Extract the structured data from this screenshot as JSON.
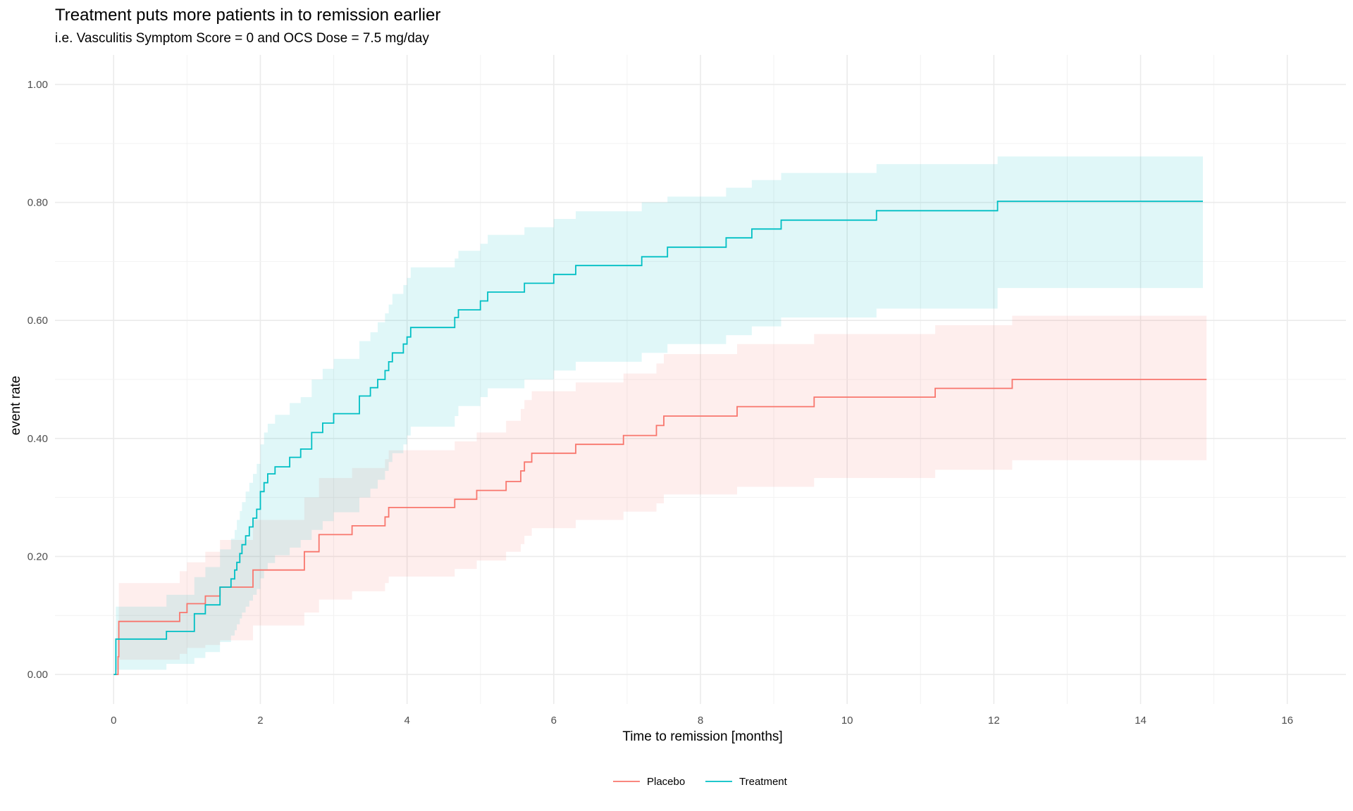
{
  "chart_data": {
    "type": "line",
    "title": "Treatment puts more patients in to remission earlier",
    "subtitle": "i.e. Vasculitis Symptom Score = 0 and OCS Dose = 7.5 mg/day",
    "xlabel": "Time to remission [months]",
    "ylabel": "event rate",
    "xlim": [
      -0.8,
      16.8
    ],
    "ylim": [
      -0.05,
      1.05
    ],
    "x_ticks": [
      0,
      2,
      4,
      6,
      8,
      10,
      12,
      14,
      16
    ],
    "x_tick_labels": [
      "0",
      "2",
      "4",
      "6",
      "8",
      "10",
      "12",
      "14",
      "16"
    ],
    "y_ticks": [
      0,
      0.2,
      0.4,
      0.6,
      0.8,
      1.0
    ],
    "y_tick_labels": [
      "0.00",
      "0.20",
      "0.40",
      "0.60",
      "0.80",
      "1.00"
    ],
    "grid": true,
    "legend_position": "bottom",
    "step": true,
    "series": [
      {
        "name": "Placebo",
        "color": "#F8766D",
        "x": [
          0,
          0.06,
          0.07,
          0.9,
          1.0,
          1.25,
          1.45,
          1.9,
          2.6,
          2.8,
          3.25,
          3.7,
          3.75,
          4.65,
          4.95,
          5.35,
          5.55,
          5.6,
          5.7,
          6.3,
          6.95,
          7.4,
          7.5,
          8.5,
          9.55,
          11.2,
          12.25,
          14.9
        ],
        "y": [
          0,
          0.03,
          0.09,
          0.105,
          0.12,
          0.133,
          0.148,
          0.177,
          0.208,
          0.237,
          0.252,
          0.267,
          0.283,
          0.297,
          0.312,
          0.327,
          0.345,
          0.36,
          0.375,
          0.39,
          0.405,
          0.422,
          0.438,
          0.454,
          0.47,
          0.485,
          0.5,
          0.5
        ],
        "lower": [
          0,
          0.0,
          0.025,
          0.035,
          0.045,
          0.05,
          0.058,
          0.083,
          0.105,
          0.127,
          0.141,
          0.155,
          0.166,
          0.179,
          0.193,
          0.208,
          0.221,
          0.235,
          0.248,
          0.262,
          0.276,
          0.29,
          0.305,
          0.318,
          0.333,
          0.347,
          0.363,
          0.363
        ],
        "upper": [
          0,
          0.08,
          0.155,
          0.175,
          0.19,
          0.208,
          0.228,
          0.262,
          0.3,
          0.333,
          0.35,
          0.365,
          0.38,
          0.395,
          0.41,
          0.43,
          0.45,
          0.465,
          0.48,
          0.495,
          0.51,
          0.527,
          0.543,
          0.56,
          0.577,
          0.592,
          0.608,
          0.608
        ]
      },
      {
        "name": "Treatment",
        "color": "#00BFC4",
        "x": [
          0,
          0.03,
          0.72,
          1.1,
          1.25,
          1.45,
          1.6,
          1.65,
          1.68,
          1.72,
          1.75,
          1.8,
          1.85,
          1.9,
          1.95,
          2.0,
          2.05,
          2.1,
          2.2,
          2.4,
          2.55,
          2.7,
          2.85,
          3.0,
          3.35,
          3.5,
          3.6,
          3.7,
          3.75,
          3.8,
          3.95,
          4.0,
          4.05,
          4.65,
          4.7,
          5.0,
          5.1,
          5.6,
          6.0,
          6.3,
          7.2,
          7.55,
          8.35,
          8.7,
          9.1,
          10.4,
          12.05,
          14.85
        ],
        "y": [
          0,
          0.06,
          0.073,
          0.103,
          0.118,
          0.148,
          0.162,
          0.177,
          0.19,
          0.205,
          0.22,
          0.235,
          0.25,
          0.265,
          0.28,
          0.31,
          0.325,
          0.34,
          0.352,
          0.368,
          0.382,
          0.41,
          0.426,
          0.442,
          0.472,
          0.486,
          0.5,
          0.515,
          0.53,
          0.545,
          0.56,
          0.572,
          0.588,
          0.605,
          0.618,
          0.633,
          0.648,
          0.663,
          0.678,
          0.693,
          0.708,
          0.724,
          0.74,
          0.755,
          0.77,
          0.786,
          0.802,
          0.802
        ],
        "lower": [
          0,
          0.008,
          0.018,
          0.028,
          0.038,
          0.055,
          0.066,
          0.075,
          0.085,
          0.095,
          0.105,
          0.115,
          0.125,
          0.135,
          0.145,
          0.163,
          0.176,
          0.189,
          0.202,
          0.215,
          0.228,
          0.245,
          0.26,
          0.275,
          0.3,
          0.315,
          0.33,
          0.345,
          0.36,
          0.375,
          0.39,
          0.405,
          0.42,
          0.438,
          0.455,
          0.47,
          0.485,
          0.5,
          0.515,
          0.53,
          0.545,
          0.56,
          0.575,
          0.59,
          0.605,
          0.62,
          0.655,
          0.678
        ],
        "upper": [
          0,
          0.115,
          0.135,
          0.165,
          0.182,
          0.212,
          0.23,
          0.245,
          0.262,
          0.277,
          0.292,
          0.31,
          0.325,
          0.34,
          0.357,
          0.39,
          0.41,
          0.425,
          0.44,
          0.46,
          0.47,
          0.5,
          0.518,
          0.535,
          0.565,
          0.58,
          0.597,
          0.612,
          0.627,
          0.645,
          0.66,
          0.672,
          0.69,
          0.705,
          0.718,
          0.73,
          0.745,
          0.758,
          0.772,
          0.785,
          0.8,
          0.81,
          0.825,
          0.838,
          0.85,
          0.865,
          0.878,
          0.878
        ]
      }
    ]
  }
}
